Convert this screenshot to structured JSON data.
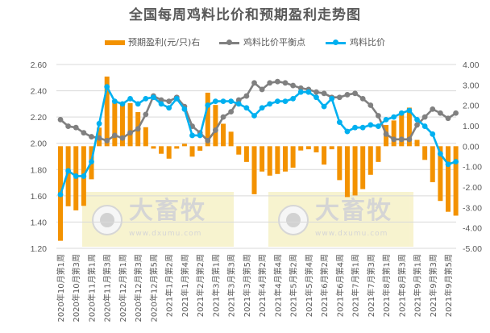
{
  "chart_data": {
    "type": "bar+line",
    "title": "全国每周鸡料比价和预期盈利走势图",
    "categories": [
      "2020年10月第1周",
      "",
      "2020年10月第3周",
      "",
      "2020年11月第1周",
      "",
      "2020年11月第3周",
      "",
      "2020年12月第1周",
      "",
      "2020年12月第3周",
      "",
      "2020年12月第5周",
      "",
      "2021年1月第2周",
      "",
      "2021年1月第4周",
      "",
      "2021年2月第2周",
      "",
      "2021年3月第1周",
      "",
      "2021年3月第3周",
      "",
      "2021年3月第5周",
      "",
      "2021年4月第2周",
      "",
      "2021年4月第4周",
      "",
      "2021年5月第2周",
      "",
      "2021年5月第4周",
      "",
      "2021年6月第2周",
      "",
      "2021年6月第4周",
      "",
      "2021年7月第1周",
      "",
      "2021年7月第3周",
      "",
      "2021年8月第1周",
      "",
      "2021年8月第3周",
      "",
      "2021年9月第1周",
      "",
      "2021年9月第3周",
      "",
      "2021年9月第5周",
      ""
    ],
    "left_axis": {
      "ylim": [
        1.2,
        2.6
      ],
      "ticks": [
        "2.60",
        "2.40",
        "2.20",
        "2.00",
        "1.80",
        "1.60",
        "1.40",
        "1.20"
      ]
    },
    "right_axis": {
      "ylim": [
        -5.0,
        4.0
      ],
      "ticks": [
        "4.00",
        "3.00",
        "2.00",
        "1.00",
        "0.00",
        "-1.00",
        "-2.00",
        "-3.00",
        "-4.00",
        "-5.00"
      ]
    },
    "grid": true,
    "legend_position": "top",
    "series": [
      {
        "name": "预期盈利(元/只)右",
        "type": "bar",
        "axis": "right",
        "color": "#F39200",
        "values": [
          -4.63,
          -2.94,
          -3.14,
          -2.92,
          -1.62,
          0.91,
          3.41,
          2.22,
          2.09,
          2.11,
          1.67,
          0.93,
          -0.12,
          -0.37,
          -0.61,
          -0.12,
          0.12,
          -0.51,
          -0.22,
          2.62,
          2.02,
          1.1,
          0.71,
          -0.41,
          -0.77,
          -2.35,
          -1.24,
          -1.44,
          -1.36,
          -1.24,
          -1.05,
          -0.21,
          -0.15,
          -0.3,
          -0.9,
          -0.15,
          -1.66,
          -2.49,
          -2.41,
          -2.1,
          -1.4,
          -0.77,
          1.04,
          1.26,
          1.7,
          1.89,
          0.31,
          -0.67,
          -1.76,
          -2.68,
          -3.21,
          -3.4
        ]
      },
      {
        "name": "鸡料比价平衡点",
        "type": "line",
        "axis": "left",
        "color": "#808080",
        "values": [
          2.18,
          2.13,
          2.12,
          2.08,
          2.05,
          2.04,
          2.02,
          2.06,
          2.04,
          2.08,
          2.11,
          2.22,
          2.36,
          2.33,
          2.32,
          2.35,
          2.28,
          2.13,
          2.08,
          2.02,
          2.1,
          2.2,
          2.24,
          2.33,
          2.36,
          2.46,
          2.41,
          2.46,
          2.47,
          2.46,
          2.44,
          2.42,
          2.41,
          2.39,
          2.38,
          2.35,
          2.35,
          2.37,
          2.38,
          2.34,
          2.29,
          2.21,
          2.07,
          2.03,
          2.03,
          2.03,
          2.14,
          2.2,
          2.26,
          2.23,
          2.19,
          2.23
        ]
      },
      {
        "name": "鸡料比价",
        "type": "line",
        "axis": "left",
        "color": "#00B0F0",
        "values": [
          1.61,
          1.79,
          1.75,
          1.75,
          1.86,
          2.15,
          2.43,
          2.32,
          2.3,
          2.34,
          2.3,
          2.34,
          2.35,
          2.3,
          2.27,
          2.34,
          2.26,
          2.06,
          2.06,
          2.29,
          2.32,
          2.32,
          2.32,
          2.3,
          2.27,
          2.21,
          2.27,
          2.3,
          2.32,
          2.32,
          2.34,
          2.39,
          2.39,
          2.35,
          2.28,
          2.34,
          2.16,
          2.09,
          2.12,
          2.12,
          2.14,
          2.13,
          2.18,
          2.2,
          2.23,
          2.25,
          2.18,
          2.13,
          2.07,
          1.92,
          1.84,
          1.86
        ]
      }
    ]
  },
  "watermark": {
    "brand": "大畜牧",
    "url": "www.dxumu.com"
  }
}
